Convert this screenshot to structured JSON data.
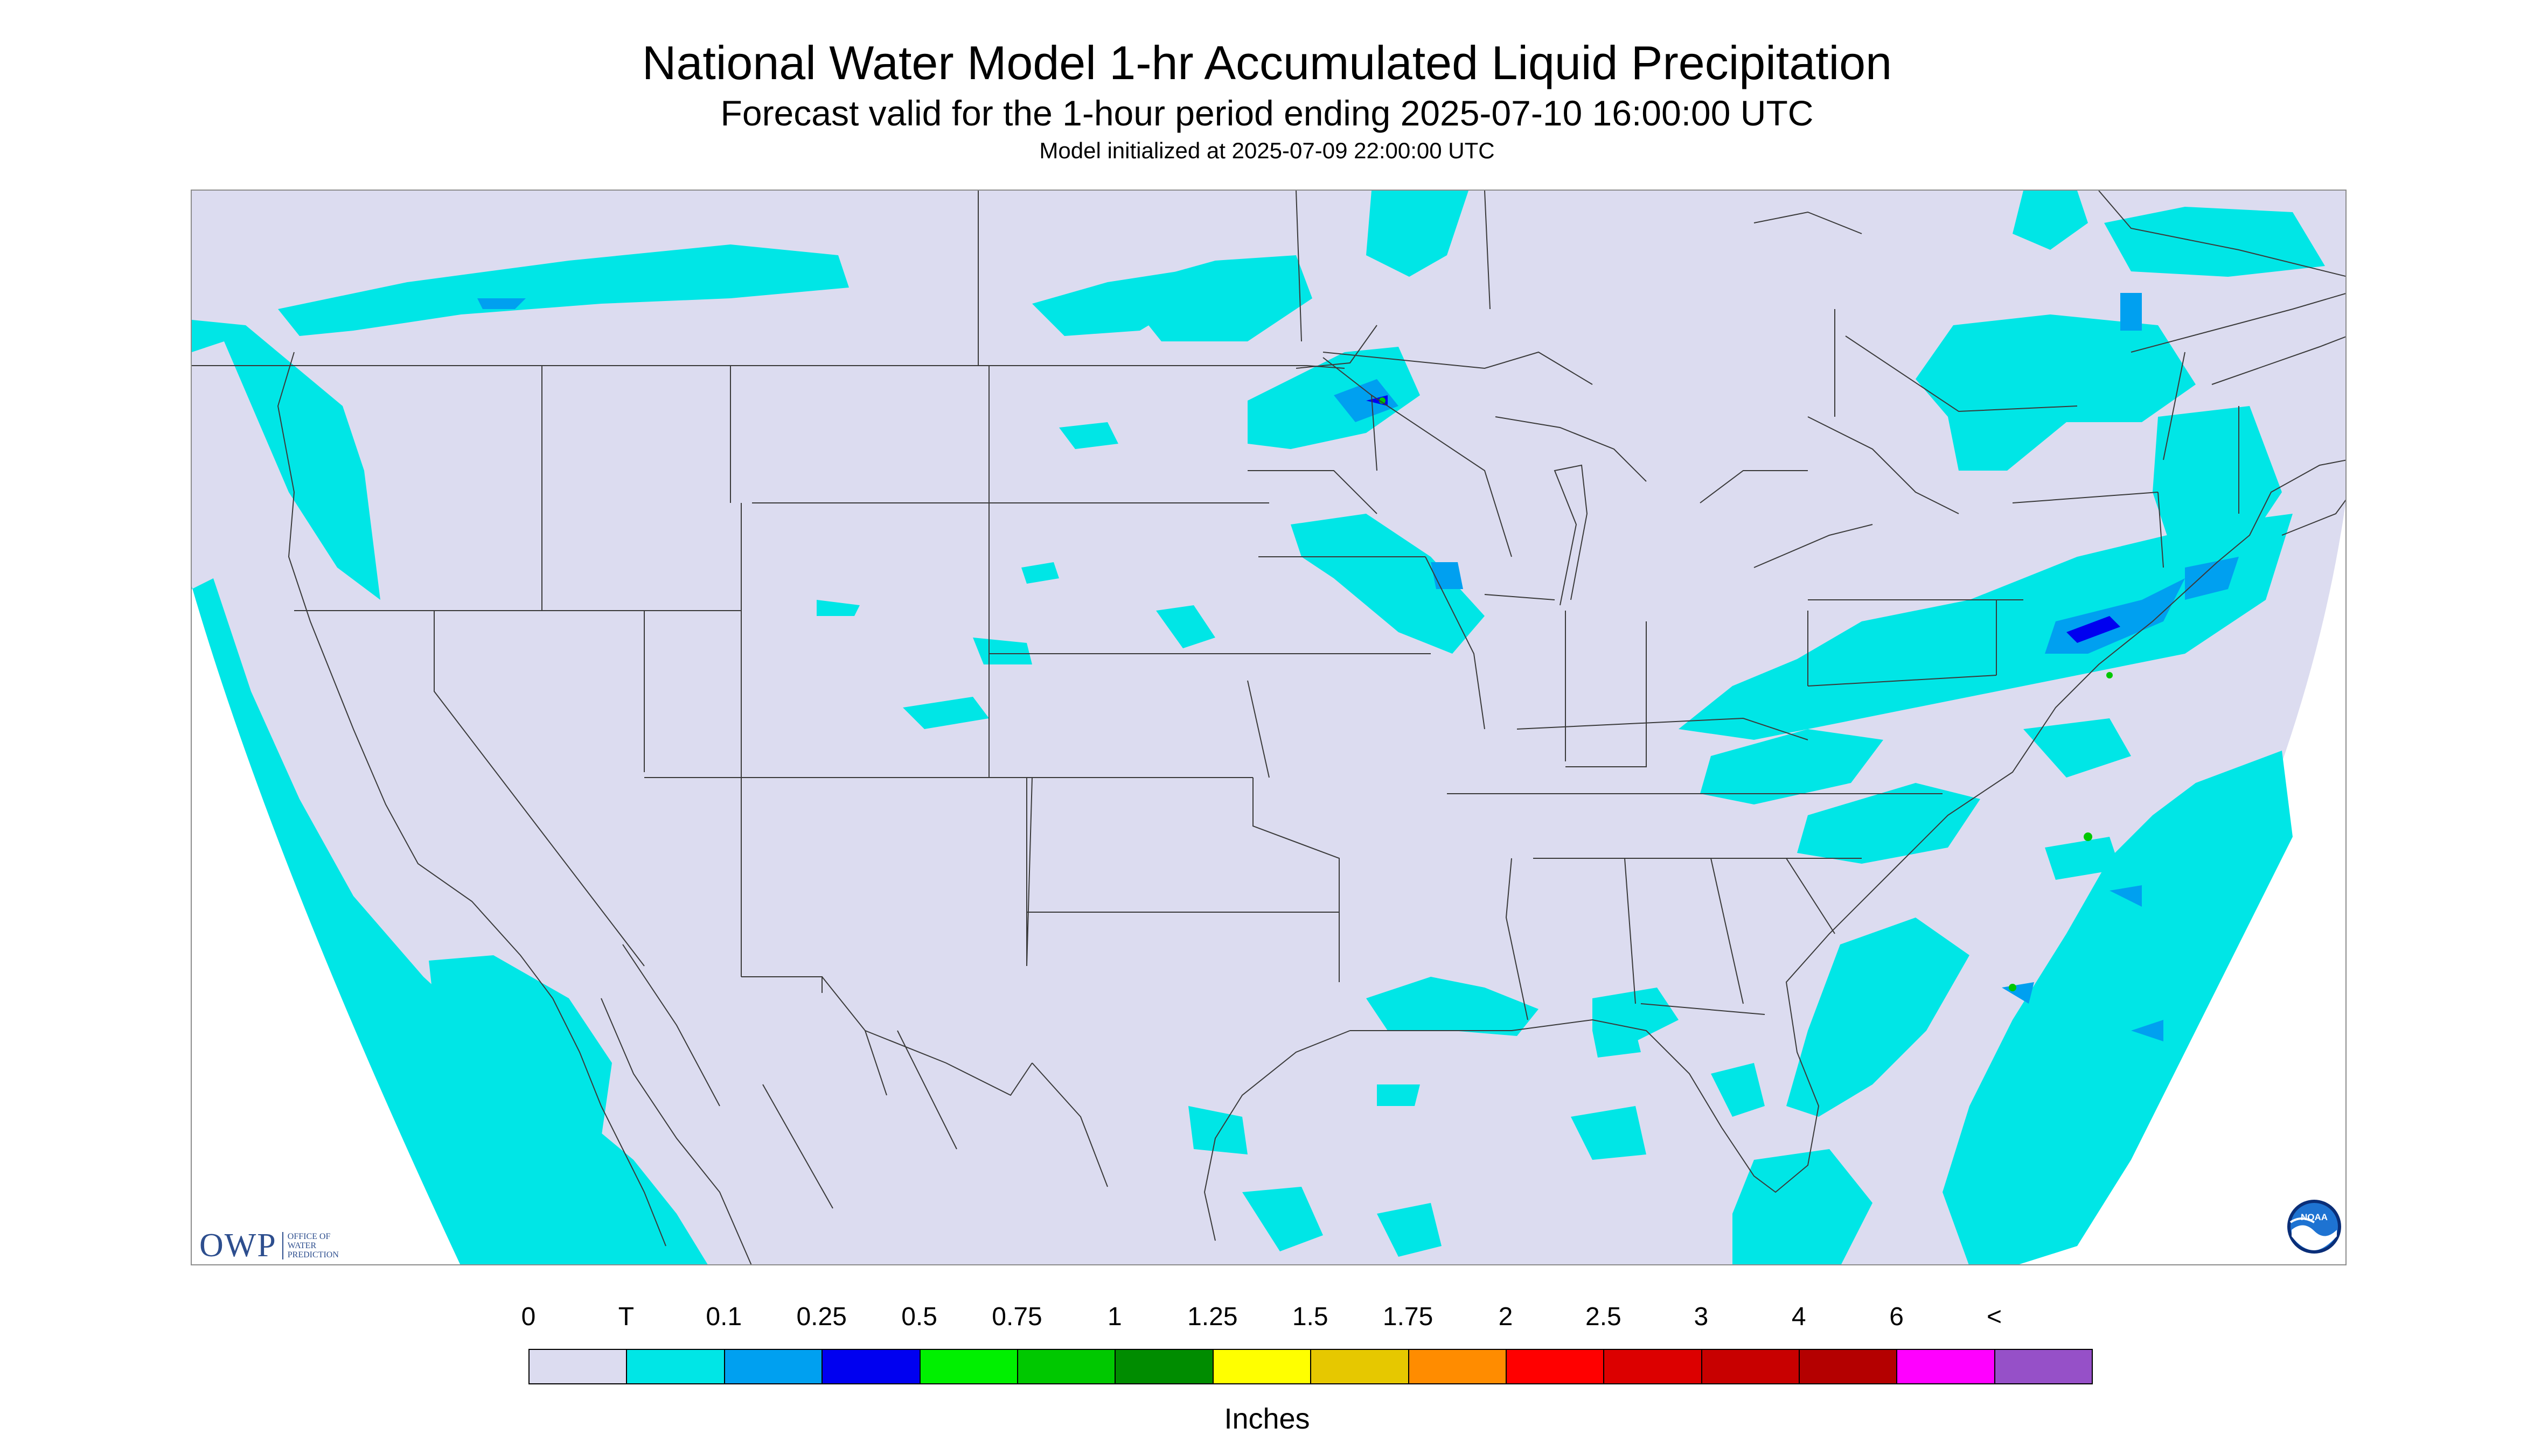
{
  "title": "National Water Model 1-hr Accumulated Liquid Precipitation",
  "subtitle": "Forecast valid for the 1-hour period ending 2025-07-10 16:00:00 UTC",
  "model_init": "Model initialized at 2025-07-09 22:00:00 UTC",
  "logo": {
    "owp_mark": "OWP",
    "owp_text": "OFFICE OF\nWATER\nPREDICTION",
    "noaa_text": "NOAA"
  },
  "colors": {
    "no_precip": "#dcdcf0",
    "trace": "#00e6e6",
    "map_lines": "#3a3a3a",
    "outside_domain": "#ffffff"
  },
  "legend": {
    "labels": [
      "0",
      "T",
      "0.1",
      "0.25",
      "0.5",
      "0.75",
      "1",
      "1.25",
      "1.5",
      "1.75",
      "2",
      "2.5",
      "3",
      "4",
      "6",
      "<"
    ],
    "colors": [
      "#dcdcf0",
      "#00e6e6",
      "#00a0f0",
      "#0000f0",
      "#00f000",
      "#00c800",
      "#008c00",
      "#ffff00",
      "#e6c800",
      "#ff8c00",
      "#ff0000",
      "#dc0000",
      "#c80000",
      "#b40000",
      "#ff00ff",
      "#9650c8"
    ],
    "units": "Inches"
  }
}
